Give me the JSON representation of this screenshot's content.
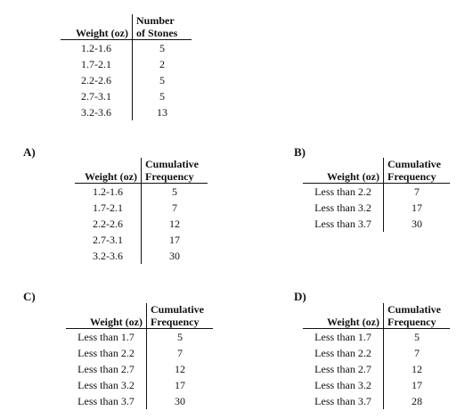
{
  "main_table": {
    "headers": [
      "Weight (oz)",
      "Number\nof Stones"
    ],
    "rows": [
      [
        "1.2-1.6",
        "5"
      ],
      [
        "1.7-2.1",
        "2"
      ],
      [
        "2.2-2.6",
        "5"
      ],
      [
        "2.7-3.1",
        "5"
      ],
      [
        "3.2-3.6",
        "13"
      ]
    ]
  },
  "options": {
    "a": {
      "label": "A)",
      "headers": [
        "Weight (oz)",
        "Cumulative\nFrequency"
      ],
      "rows": [
        [
          "1.2-1.6",
          "5"
        ],
        [
          "1.7-2.1",
          "7"
        ],
        [
          "2.2-2.6",
          "12"
        ],
        [
          "2.7-3.1",
          "17"
        ],
        [
          "3.2-3.6",
          "30"
        ]
      ]
    },
    "b": {
      "label": "B)",
      "headers": [
        "Weight (oz)",
        "Cumulative\nFrequency"
      ],
      "rows": [
        [
          "Less than 2.2",
          "7"
        ],
        [
          "Less than 3.2",
          "17"
        ],
        [
          "Less than 3.7",
          "30"
        ]
      ]
    },
    "c": {
      "label": "C)",
      "headers": [
        "Weight (oz)",
        "Cumulative\nFrequency"
      ],
      "rows": [
        [
          "Less than 1.7",
          "5"
        ],
        [
          "Less than 2.2",
          "7"
        ],
        [
          "Less than 2.7",
          "12"
        ],
        [
          "Less than 3.2",
          "17"
        ],
        [
          "Less than 3.7",
          "30"
        ]
      ]
    },
    "d": {
      "label": "D)",
      "headers": [
        "Weight (oz)",
        "Cumulative\nFrequency"
      ],
      "rows": [
        [
          "Less than 1.7",
          "5"
        ],
        [
          "Less than 2.2",
          "7"
        ],
        [
          "Less than 2.7",
          "12"
        ],
        [
          "Less than 3.2",
          "17"
        ],
        [
          "Less than 3.7",
          "28"
        ]
      ]
    }
  }
}
